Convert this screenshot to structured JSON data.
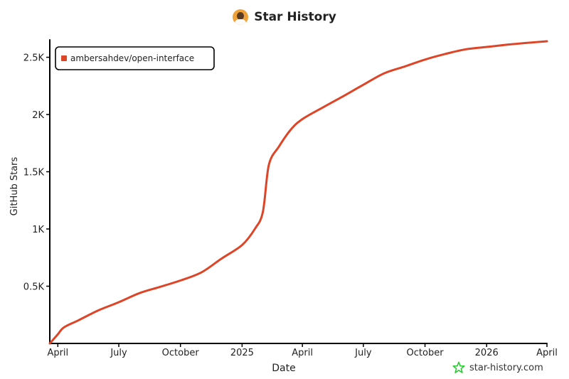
{
  "header": {
    "title": "Star History",
    "avatar_icon": "user-avatar-icon"
  },
  "watermark": {
    "text": "star-history.com",
    "icon": "star-icon"
  },
  "colors": {
    "line": "#dd4528",
    "axis": "#000000",
    "text": "#222222",
    "watermark_icon": "#30c93a"
  },
  "chart_data": {
    "type": "line",
    "title": "Star History",
    "xlabel": "Date",
    "ylabel": "GitHub Stars",
    "ylim": [
      0,
      2640
    ],
    "xlim": [
      "2024-03-20",
      "2026-04-01"
    ],
    "grid": false,
    "legend_position": "top-left",
    "yticks": [
      {
        "value": 500,
        "label": "0.5K"
      },
      {
        "value": 1000,
        "label": "1K"
      },
      {
        "value": 1500,
        "label": "1.5K"
      },
      {
        "value": 2000,
        "label": "2K"
      },
      {
        "value": 2500,
        "label": "2.5K"
      }
    ],
    "xticks": [
      {
        "date": "2024-04-01",
        "label": "April"
      },
      {
        "date": "2024-07-01",
        "label": "July"
      },
      {
        "date": "2024-10-01",
        "label": "October"
      },
      {
        "date": "2025-01-01",
        "label": "2025"
      },
      {
        "date": "2025-04-01",
        "label": "April"
      },
      {
        "date": "2025-07-01",
        "label": "July"
      },
      {
        "date": "2025-10-01",
        "label": "October"
      },
      {
        "date": "2026-01-01",
        "label": "2026"
      },
      {
        "date": "2026-04-01",
        "label": "April"
      }
    ],
    "series": [
      {
        "name": "ambersahdev/open-interface",
        "color": "#dd4528",
        "points": [
          [
            "2024-03-20",
            0
          ],
          [
            "2024-04-01",
            80
          ],
          [
            "2024-04-10",
            140
          ],
          [
            "2024-05-01",
            200
          ],
          [
            "2024-06-01",
            290
          ],
          [
            "2024-07-01",
            360
          ],
          [
            "2024-08-01",
            440
          ],
          [
            "2024-09-01",
            495
          ],
          [
            "2024-10-01",
            550
          ],
          [
            "2024-11-01",
            620
          ],
          [
            "2024-12-01",
            740
          ],
          [
            "2025-01-01",
            860
          ],
          [
            "2025-01-20",
            1000
          ],
          [
            "2025-02-01",
            1150
          ],
          [
            "2025-02-10",
            1560
          ],
          [
            "2025-02-25",
            1720
          ],
          [
            "2025-03-15",
            1870
          ],
          [
            "2025-04-01",
            1960
          ],
          [
            "2025-05-01",
            2060
          ],
          [
            "2025-06-01",
            2160
          ],
          [
            "2025-07-01",
            2260
          ],
          [
            "2025-08-01",
            2360
          ],
          [
            "2025-09-01",
            2420
          ],
          [
            "2025-10-01",
            2480
          ],
          [
            "2025-11-01",
            2530
          ],
          [
            "2025-12-01",
            2570
          ],
          [
            "2026-01-01",
            2590
          ],
          [
            "2026-02-01",
            2610
          ],
          [
            "2026-03-01",
            2625
          ],
          [
            "2026-04-01",
            2640
          ]
        ]
      }
    ]
  }
}
